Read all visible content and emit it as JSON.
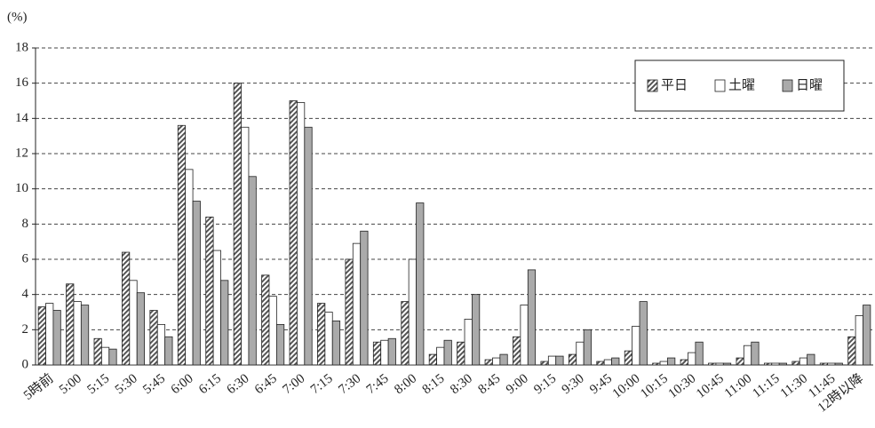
{
  "chart_data": {
    "type": "bar",
    "y_label": "(%)",
    "categories": [
      "5時前",
      "5:00",
      "5:15",
      "5:30",
      "5:45",
      "6:00",
      "6:15",
      "6:30",
      "6:45",
      "7:00",
      "7:15",
      "7:30",
      "7:45",
      "8:00",
      "8:15",
      "8:30",
      "8:45",
      "9:00",
      "9:15",
      "9:30",
      "9:45",
      "10:00",
      "10:15",
      "10:30",
      "10:45",
      "11:00",
      "11:15",
      "11:30",
      "11:45",
      "12時以降"
    ],
    "series": [
      {
        "name": "平日",
        "color": "#555555",
        "pattern": "hatch",
        "values": [
          3.3,
          4.6,
          1.5,
          6.4,
          3.1,
          13.6,
          8.4,
          16.0,
          5.1,
          15.0,
          3.5,
          6.0,
          1.3,
          3.6,
          0.6,
          1.3,
          0.3,
          1.6,
          0.2,
          0.6,
          0.2,
          0.8,
          0.1,
          0.3,
          0.1,
          0.4,
          0.1,
          0.2,
          0.1,
          1.6
        ]
      },
      {
        "name": "土曜",
        "color": "#ffffff",
        "values": [
          3.5,
          3.6,
          1.0,
          4.8,
          2.3,
          11.1,
          6.5,
          13.5,
          3.9,
          14.9,
          3.0,
          6.9,
          1.4,
          6.0,
          1.0,
          2.6,
          0.4,
          3.4,
          0.5,
          1.3,
          0.3,
          2.2,
          0.2,
          0.7,
          0.1,
          1.1,
          0.1,
          0.4,
          0.1,
          2.8
        ]
      },
      {
        "name": "日曜",
        "color": "#aaaaaa",
        "values": [
          3.1,
          3.4,
          0.9,
          4.1,
          1.6,
          9.3,
          4.8,
          10.7,
          2.3,
          13.5,
          2.5,
          7.6,
          1.5,
          9.2,
          1.4,
          4.0,
          0.6,
          5.4,
          0.5,
          2.0,
          0.4,
          3.6,
          0.4,
          1.3,
          0.1,
          1.3,
          0.1,
          0.6,
          0.1,
          3.4
        ]
      }
    ],
    "ylim": [
      0,
      18
    ],
    "yticks": [
      0,
      2,
      4,
      6,
      8,
      10,
      12,
      14,
      16,
      18
    ],
    "grid": true,
    "legend": "top-right"
  }
}
